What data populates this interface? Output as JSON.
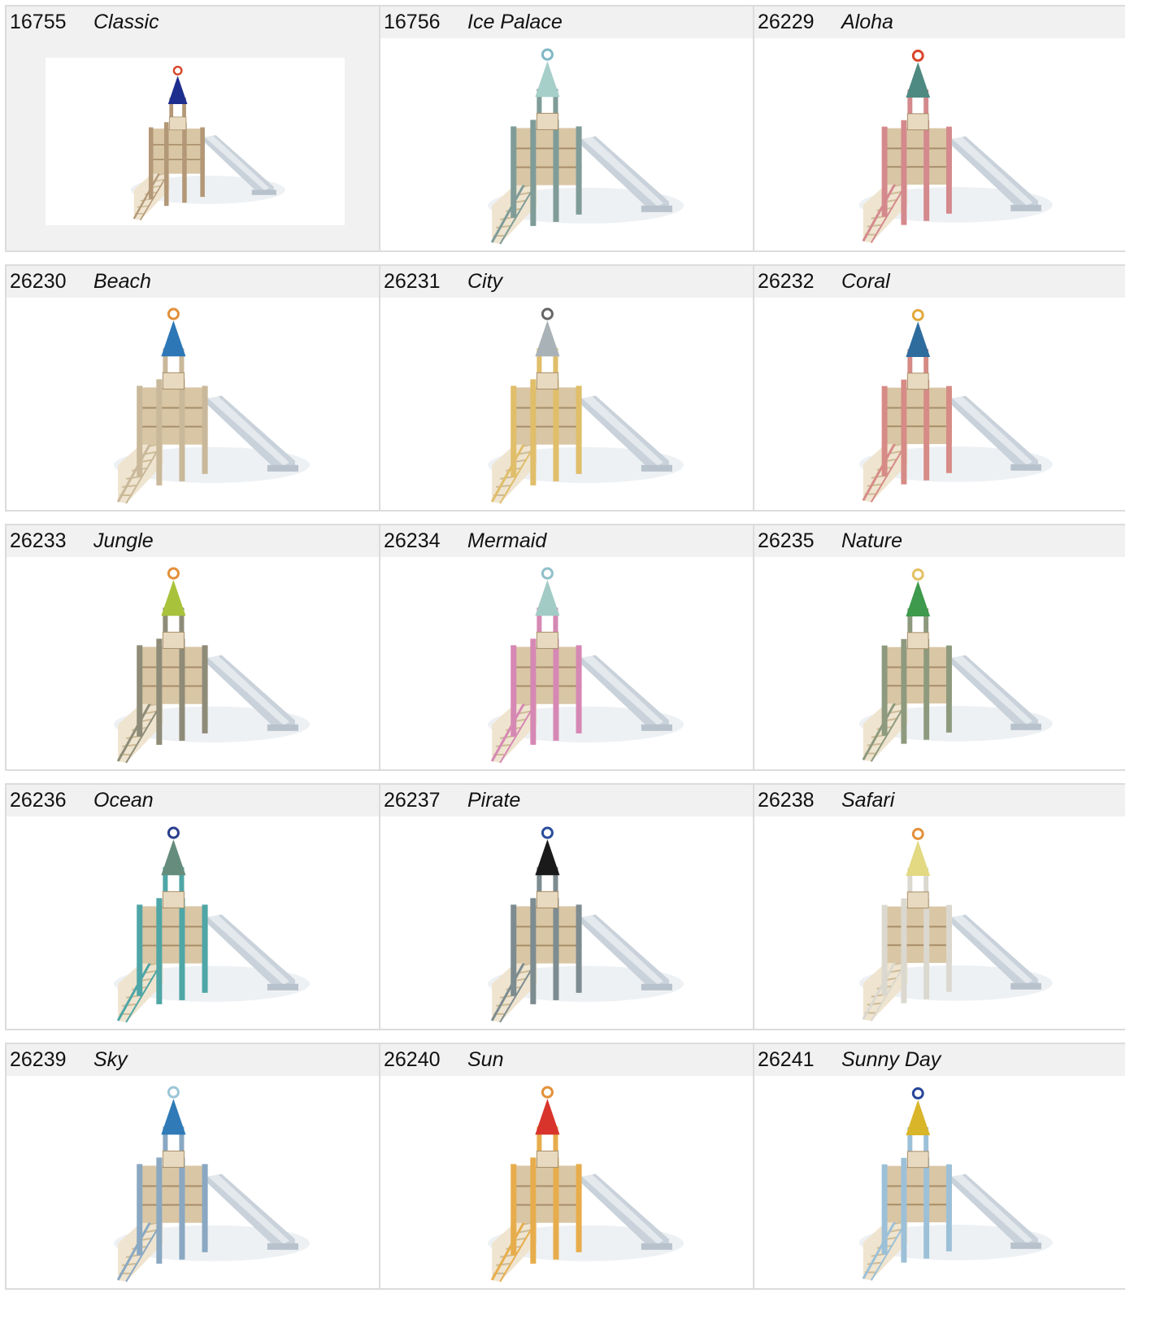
{
  "products": [
    {
      "code": "16755",
      "name": "Classic",
      "roof": "#1d2e8f",
      "post": "#b39877",
      "badge": "#d8452a",
      "selected": true
    },
    {
      "code": "16756",
      "name": "Ice Palace",
      "roof": "#a7cfca",
      "post": "#7f9c98",
      "badge": "#7fb8c4"
    },
    {
      "code": "26229",
      "name": "Aloha",
      "roof": "#4f8a82",
      "post": "#d4898d",
      "badge": "#d8452a"
    },
    {
      "code": "26230",
      "name": "Beach",
      "roof": "#2e77b7",
      "post": "#c9b89a",
      "badge": "#e3903a"
    },
    {
      "code": "26231",
      "name": "City",
      "roof": "#a9b2b6",
      "post": "#e0be6a",
      "badge": "#666666"
    },
    {
      "code": "26232",
      "name": "Coral",
      "roof": "#2f6c9e",
      "post": "#d68b86",
      "badge": "#e2a83c"
    },
    {
      "code": "26233",
      "name": "Jungle",
      "roof": "#a9c23c",
      "post": "#8e8c78",
      "badge": "#e3903a"
    },
    {
      "code": "26234",
      "name": "Mermaid",
      "roof": "#a3cbc6",
      "post": "#d688b4",
      "badge": "#8fc0c8"
    },
    {
      "code": "26235",
      "name": "Nature",
      "roof": "#3e9a4c",
      "post": "#8e9a7e",
      "badge": "#e4c062"
    },
    {
      "code": "26236",
      "name": "Ocean",
      "roof": "#658c7c",
      "post": "#4fa6a6",
      "badge": "#2a3e8c"
    },
    {
      "code": "26237",
      "name": "Pirate",
      "roof": "#1a1a1a",
      "post": "#7d8c90",
      "badge": "#2a4e9c"
    },
    {
      "code": "26238",
      "name": "Safari",
      "roof": "#e2d982",
      "post": "#dbd8cf",
      "badge": "#e3903a"
    },
    {
      "code": "26239",
      "name": "Sky",
      "roof": "#2f7ab7",
      "post": "#8aa8c2",
      "badge": "#9cc6d8"
    },
    {
      "code": "26240",
      "name": "Sun",
      "roof": "#d8342c",
      "post": "#e7ad4c",
      "badge": "#e3903a"
    },
    {
      "code": "26241",
      "name": "Sunny Day",
      "roof": "#d9b52a",
      "post": "#9cc0d8",
      "badge": "#27459a"
    }
  ]
}
